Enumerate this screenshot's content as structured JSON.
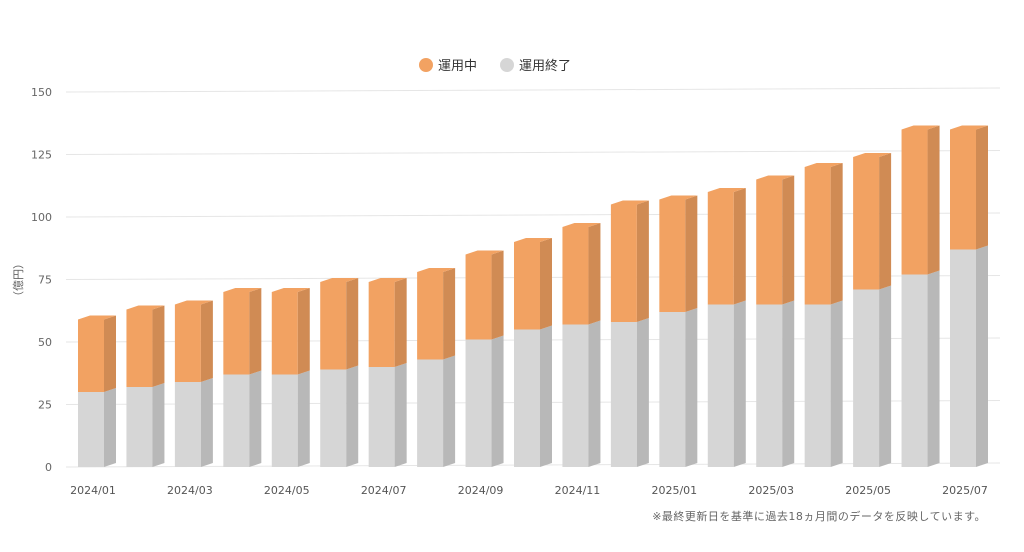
{
  "chart_data": {
    "type": "bar",
    "stacked": true,
    "style": "3d-column",
    "categories": [
      "2024/01",
      "2024/02",
      "2024/03",
      "2024/04",
      "2024/05",
      "2024/06",
      "2024/07",
      "2024/08",
      "2024/09",
      "2024/10",
      "2024/11",
      "2024/12",
      "2025/01",
      "2025/02",
      "2025/03",
      "2025/04",
      "2025/05",
      "2025/06",
      "2025/07"
    ],
    "series": [
      {
        "name": "運用終了",
        "color": "#d6d6d6",
        "values": [
          30,
          32,
          34,
          37,
          37,
          39,
          40,
          43,
          51,
          55,
          57,
          58,
          62,
          65,
          65,
          65,
          71,
          77,
          87
        ]
      },
      {
        "name": "運用中",
        "color": "#f2a262",
        "values": [
          29,
          31,
          31,
          33,
          33,
          35,
          34,
          35,
          34,
          35,
          39,
          47,
          45,
          45,
          50,
          55,
          53,
          58,
          48
        ]
      }
    ],
    "yticks": [
      "0",
      "25",
      "50",
      "75",
      "100",
      "125",
      "150"
    ],
    "ylim": [
      0,
      150
    ],
    "ylabel": "（億円）",
    "xticks_shown": [
      "2024/01",
      "2024/03",
      "2024/05",
      "2024/07",
      "2024/09",
      "2024/11",
      "2025/01",
      "2025/03",
      "2025/05",
      "2025/07"
    ],
    "legend_position": "top-center",
    "grid": true
  },
  "footnote": "※最終更新日を基準に過去18ヵ月間のデータを反映しています。"
}
